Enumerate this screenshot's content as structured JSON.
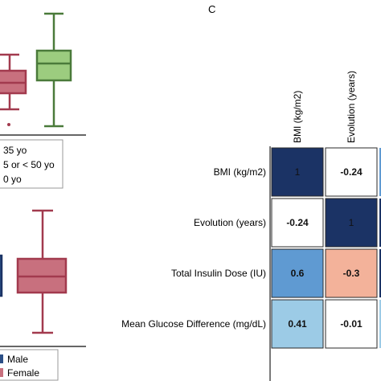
{
  "panel_label": "C",
  "legend_top": [
    "35 yo",
    "5 or < 50 yo",
    "0 yo"
  ],
  "legend_bottom": [
    "Male",
    "Female"
  ],
  "colors": {
    "pink_fill": "#c8707e",
    "pink_stroke": "#a23a4e",
    "green_fill": "#9ccc7f",
    "green_stroke": "#4a7a3a",
    "blue_dark": "#1b3365",
    "blue_mid": "#5f9ad2",
    "blue_light": "#9ccbe6",
    "salmon": "#f3b29a",
    "male_legend": "#2b4f86",
    "female_legend": "#c8707e"
  },
  "chart_data": [
    {
      "type": "box",
      "series": [
        {
          "color": "pink",
          "outlier": true
        },
        {
          "color": "green",
          "outlier": false
        }
      ]
    },
    {
      "type": "box",
      "series": [
        {
          "color": "pink",
          "outlier": false
        }
      ]
    },
    {
      "type": "heatmap",
      "row_labels": [
        "BMI (kg/m2)",
        "Evolution (years)",
        "Total Insulin Dose (IU)",
        "Mean Glucose Difference (mg/dL)"
      ],
      "col_labels": [
        "BMI (kg/m2)",
        "Evolution (years)"
      ],
      "values": [
        [
          1,
          -0.24
        ],
        [
          -0.24,
          1
        ],
        [
          0.6,
          -0.3
        ],
        [
          0.41,
          -0.01
        ]
      ],
      "value_labels": [
        [
          "1",
          "-0.24"
        ],
        [
          "-0.24",
          "1"
        ],
        [
          "0.6",
          "-0.3"
        ],
        [
          "0.41",
          "-0.01"
        ]
      ]
    }
  ]
}
